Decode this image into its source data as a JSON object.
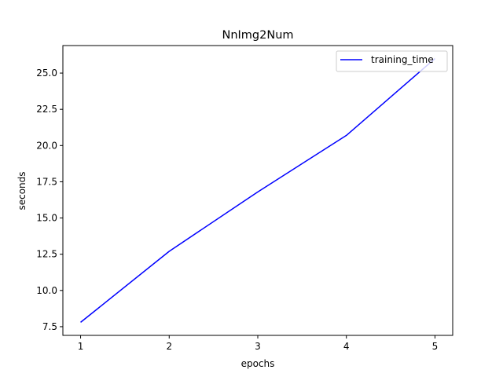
{
  "chart_data": {
    "type": "line",
    "title": "NnImg2Num",
    "xlabel": "epochs",
    "ylabel": "seconds",
    "x": [
      1,
      2,
      3,
      4,
      5
    ],
    "series": [
      {
        "name": "training_time",
        "values": [
          7.8,
          12.7,
          16.8,
          20.7,
          26.0
        ],
        "color": "#0000ff"
      }
    ],
    "xlim": [
      0.8,
      5.2
    ],
    "ylim": [
      6.9,
      26.9
    ],
    "xticks": [
      1,
      2,
      3,
      4,
      5
    ],
    "yticks": [
      7.5,
      10.0,
      12.5,
      15.0,
      17.5,
      20.0,
      22.5,
      25.0
    ],
    "ytick_labels": [
      "7.5",
      "10.0",
      "12.5",
      "15.0",
      "17.5",
      "20.0",
      "22.5",
      "25.0"
    ],
    "legend_position": "top-right",
    "grid": false
  }
}
